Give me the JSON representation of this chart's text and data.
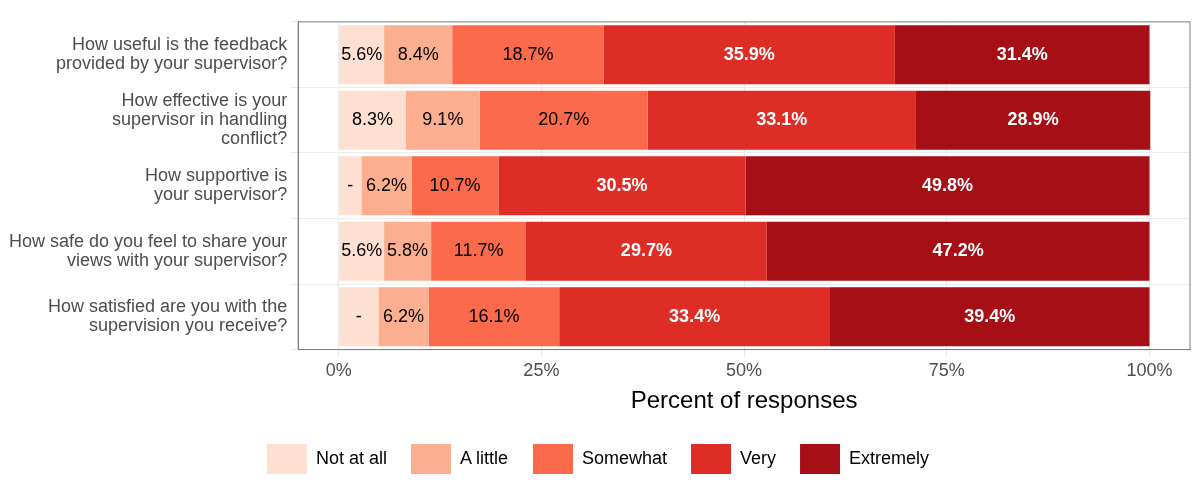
{
  "chart_data": {
    "type": "bar",
    "orientation": "horizontal",
    "stacked": true,
    "categories": [
      "How useful is the feedback\nprovided by your supervisor?",
      "How effective is your\nsupervisor in handling\nconflict?",
      "How supportive is\nyour supervisor?",
      "How safe do you feel to share your\nviews with your supervisor?",
      "How satisfied are you with the\nsupervision you receive?"
    ],
    "series": [
      {
        "name": "Not at all",
        "color": "#fee0d2",
        "values": [
          5.6,
          8.3,
          2.8,
          5.6,
          4.9
        ],
        "value_labels": [
          "5.6%",
          "8.3%",
          "-",
          "5.6%",
          "-"
        ]
      },
      {
        "name": "A little",
        "color": "#fcae91",
        "values": [
          8.4,
          9.1,
          6.2,
          5.8,
          6.2
        ],
        "value_labels": [
          "8.4%",
          "9.1%",
          "6.2%",
          "5.8%",
          "6.2%"
        ]
      },
      {
        "name": "Somewhat",
        "color": "#fb6a4a",
        "values": [
          18.7,
          20.7,
          10.7,
          11.7,
          16.1
        ],
        "value_labels": [
          "18.7%",
          "20.7%",
          "10.7%",
          "11.7%",
          "16.1%"
        ]
      },
      {
        "name": "Very",
        "color": "#de2d26",
        "values": [
          35.9,
          33.1,
          30.5,
          29.7,
          33.4
        ],
        "value_labels": [
          "35.9%",
          "33.1%",
          "30.5%",
          "29.7%",
          "33.4%"
        ]
      },
      {
        "name": "Extremely",
        "color": "#a50f15",
        "values": [
          31.4,
          28.9,
          49.8,
          47.2,
          39.4
        ],
        "value_labels": [
          "31.4%",
          "28.9%",
          "49.8%",
          "47.2%",
          "39.4%"
        ]
      }
    ],
    "xlabel": "Percent of responses",
    "xlim": [
      -5,
      105
    ],
    "xticks": [
      {
        "value": 0,
        "label": "0%"
      },
      {
        "value": 25,
        "label": "25%"
      },
      {
        "value": 50,
        "label": "50%"
      },
      {
        "value": 75,
        "label": "75%"
      },
      {
        "value": 100,
        "label": "100%"
      }
    ],
    "grid": true,
    "legend": "bottom"
  }
}
